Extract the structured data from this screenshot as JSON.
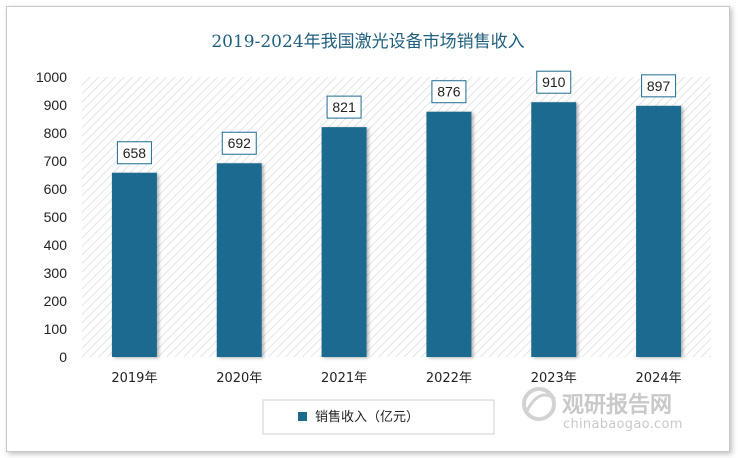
{
  "chart_data": {
    "type": "bar",
    "title": "2019-2024年我国激光设备市场销售收入",
    "categories": [
      "2019年",
      "2020年",
      "2021年",
      "2022年",
      "2023年",
      "2024年"
    ],
    "series": [
      {
        "name": "销售收入（亿元）",
        "values": [
          658,
          692,
          821,
          876,
          910,
          897
        ]
      }
    ],
    "yticks": [
      0,
      100,
      200,
      300,
      400,
      500,
      600,
      700,
      800,
      900,
      1000
    ],
    "ylim": [
      0,
      1000
    ],
    "xlabel": "",
    "ylabel": "",
    "grid": false,
    "legend_position": "bottom",
    "bar_color": "#1c6b8f"
  },
  "watermark": {
    "brand": "观研报告网",
    "url": "chinabaogao.com"
  }
}
